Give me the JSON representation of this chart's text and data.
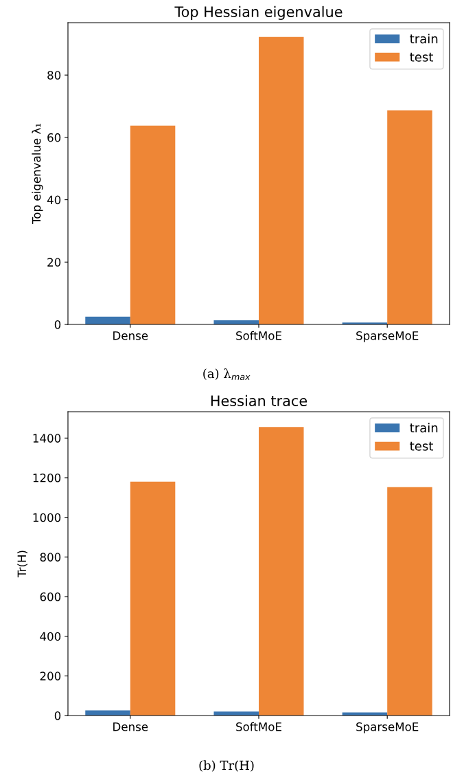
{
  "chart_data": [
    {
      "type": "bar",
      "title": "Top Hessian eigenvalue",
      "ylabel": "Top eigenvalue λ₁",
      "categories": [
        "Dense",
        "SoftMoE",
        "SparseMoE"
      ],
      "series": [
        {
          "name": "train",
          "color": "#3a75b0",
          "values": [
            2.5,
            1.3,
            0.6
          ]
        },
        {
          "name": "test",
          "color": "#ee8636",
          "values": [
            63.8,
            92.2,
            68.7
          ]
        }
      ],
      "ylim": [
        0,
        96.8
      ],
      "yticks": [
        0,
        20,
        40,
        60,
        80
      ],
      "legend": "top right",
      "grid": false,
      "annotations": [
        "(a) λ$_{max}$"
      ]
    },
    {
      "type": "bar",
      "title": "Hessian trace",
      "ylabel": "Tr(H)",
      "categories": [
        "Dense",
        "SoftMoE",
        "SparseMoE"
      ],
      "series": [
        {
          "name": "train",
          "color": "#3a75b0",
          "values": [
            26,
            20,
            16
          ]
        },
        {
          "name": "test",
          "color": "#ee8636",
          "values": [
            1180,
            1456,
            1152
          ]
        }
      ],
      "ylim": [
        0,
        1533
      ],
      "yticks": [
        0,
        200,
        400,
        600,
        800,
        1000,
        1200,
        1400
      ],
      "legend": "top right",
      "grid": false,
      "annotations": [
        "(b) Tr(H)"
      ]
    }
  ]
}
